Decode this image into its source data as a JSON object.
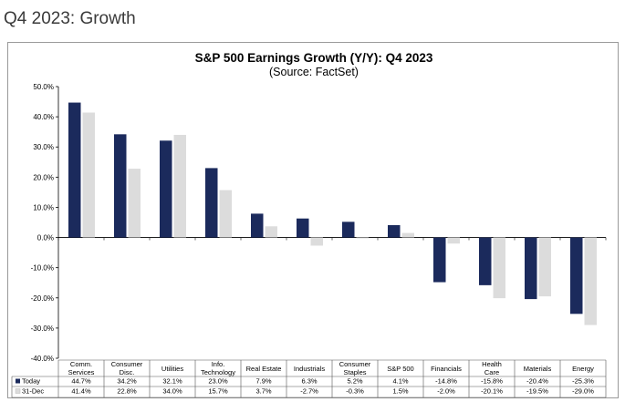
{
  "page": {
    "title": "Q4 2023: Growth"
  },
  "chart_data": {
    "type": "bar",
    "title": "S&P 500 Earnings Growth (Y/Y): Q4 2023",
    "subtitle": "(Source: FactSet)",
    "ylim": [
      -40,
      50
    ],
    "yticks": [
      "50.0%",
      "40.0%",
      "30.0%",
      "20.0%",
      "10.0%",
      "0.0%",
      "-10.0%",
      "-20.0%",
      "-30.0%",
      "-40.0%"
    ],
    "grid": false,
    "categories": [
      [
        "Comm.",
        "Services"
      ],
      [
        "Consumer",
        "Disc."
      ],
      [
        "Utilities"
      ],
      [
        "Info.",
        "Technology"
      ],
      [
        "Real Estate"
      ],
      [
        "Industrials"
      ],
      [
        "Consumer",
        "Staples"
      ],
      [
        "S&P 500"
      ],
      [
        "Financials"
      ],
      [
        "Health",
        "Care"
      ],
      [
        "Materials"
      ],
      [
        "Energy"
      ]
    ],
    "series": [
      {
        "name": "Today",
        "color": "#1b2a5c",
        "values": [
          44.7,
          34.2,
          32.1,
          23.0,
          7.9,
          6.3,
          5.2,
          4.1,
          -14.8,
          -15.8,
          -20.4,
          -25.3
        ],
        "labels": [
          "44.7%",
          "34.2%",
          "32.1%",
          "23.0%",
          "7.9%",
          "6.3%",
          "5.2%",
          "4.1%",
          "-14.8%",
          "-15.8%",
          "-20.4%",
          "-25.3%"
        ]
      },
      {
        "name": "31-Dec",
        "color": "#dcdcdc",
        "values": [
          41.4,
          22.8,
          34.0,
          15.7,
          3.7,
          -2.7,
          -0.3,
          1.5,
          -2.0,
          -20.1,
          -19.5,
          -29.0
        ],
        "labels": [
          "41.4%",
          "22.8%",
          "34.0%",
          "15.7%",
          "3.7%",
          "-2.7%",
          "-0.3%",
          "1.5%",
          "-2.0%",
          "-20.1%",
          "-19.5%",
          "-29.0%"
        ]
      }
    ]
  }
}
